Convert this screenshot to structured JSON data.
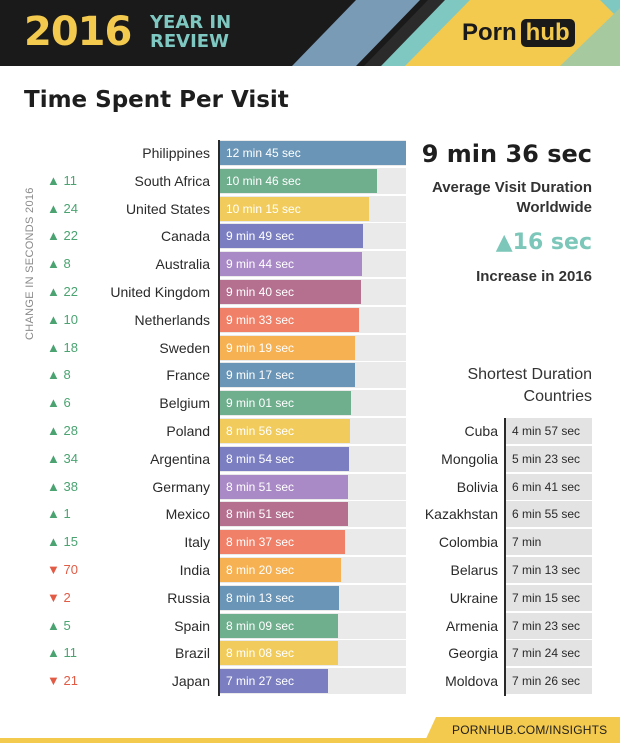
{
  "header": {
    "year": "2016",
    "year_in_review": [
      "YEAR IN",
      "REVIEW"
    ],
    "logo_porn": "Porn",
    "logo_hub": "hub"
  },
  "title": "Time Spent Per Visit",
  "side_label": "CHANGE IN SECONDS 2016",
  "stats": {
    "average_value": "9 min 36 sec",
    "average_label": "Average Visit Duration Worldwide",
    "increase_value": "16 sec",
    "increase_label": "Increase in 2016"
  },
  "shortest": {
    "title": "Shortest Duration Countries",
    "countries": [
      {
        "country": "Cuba",
        "value": "4 min 57 sec"
      },
      {
        "country": "Mongolia",
        "value": "5 min 23 sec"
      },
      {
        "country": "Bolivia",
        "value": "6 min 41 sec"
      },
      {
        "country": "Kazakhstan",
        "value": "6 min 55 sec"
      },
      {
        "country": "Colombia",
        "value": "7 min"
      },
      {
        "country": "Belarus",
        "value": "7 min 13 sec"
      },
      {
        "country": "Ukraine",
        "value": "7 min 15 sec"
      },
      {
        "country": "Armenia",
        "value": "7 min 23 sec"
      },
      {
        "country": "Georgia",
        "value": "7 min 24 sec"
      },
      {
        "country": "Moldova",
        "value": "7 min 26 sec"
      }
    ]
  },
  "footer": "PORNHUB.COM/INSIGHTS",
  "colors": {
    "header_bg": "#1a1a1a",
    "yellow": "#f3c94e",
    "teal": "#7fc8c2",
    "up": "#4aa371",
    "down": "#e15b45",
    "bar_palette": [
      "#6a95b7",
      "#6faf8e",
      "#f1cc5c",
      "#7b7fc2",
      "#a98ac6",
      "#b5708f",
      "#f08068",
      "#f6b152"
    ]
  },
  "chart_data": {
    "type": "bar",
    "orientation": "horizontal",
    "title": "Time Spent Per Visit",
    "categories": [
      "Philippines",
      "South Africa",
      "United States",
      "Canada",
      "Australia",
      "United Kingdom",
      "Netherlands",
      "Sweden",
      "France",
      "Belgium",
      "Poland",
      "Argentina",
      "Germany",
      "Mexico",
      "Italy",
      "India",
      "Russia",
      "Spain",
      "Brazil",
      "Japan"
    ],
    "labels": [
      "12 min 45 sec",
      "10 min 46 sec",
      "10 min 15 sec",
      "9 min 49 sec",
      "9 min 44 sec",
      "9 min 40 sec",
      "9 min 33 sec",
      "9 min 19 sec",
      "9 min 17 sec",
      "9 min 01 sec",
      "8 min 56 sec",
      "8 min 54 sec",
      "8 min 51 sec",
      "8 min 51 sec",
      "8 min 37 sec",
      "8 min 20 sec",
      "8 min 13 sec",
      "8 min 09 sec",
      "8 min 08 sec",
      "7 min 27 sec"
    ],
    "values": [
      765,
      646,
      615,
      589,
      584,
      580,
      573,
      559,
      557,
      541,
      536,
      534,
      531,
      531,
      517,
      500,
      493,
      489,
      488,
      447
    ],
    "changes": [
      null,
      "▲ 11",
      "▲ 24",
      "▲ 22",
      "▲ 8",
      "▲ 22",
      "▲ 10",
      "▲ 18",
      "▲ 8",
      "▲ 6",
      "▲ 28",
      "▲ 34",
      "▲ 38",
      "▲ 1",
      "▲ 15",
      "▼ 70",
      "▼ 2",
      "▲ 5",
      "▲ 11",
      "▼ 21"
    ],
    "xlim": [
      0,
      765
    ]
  }
}
